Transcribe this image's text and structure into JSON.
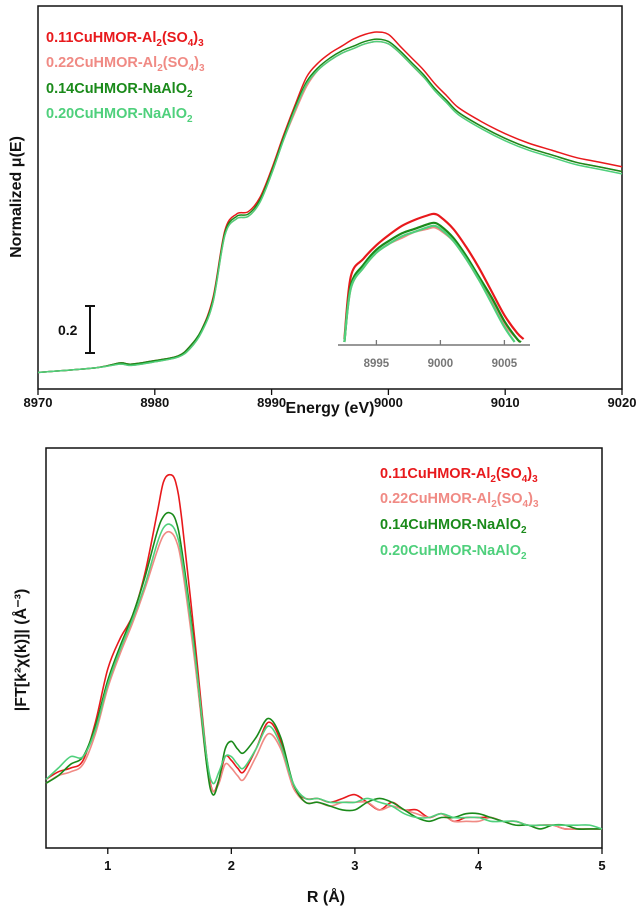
{
  "colors": {
    "s1": "#e8191c",
    "s2": "#f08a84",
    "s3": "#1a8a1a",
    "s4": "#4fd07c",
    "axis": "#111111",
    "inset_axis": "#777777"
  },
  "chart_data": [
    {
      "type": "line",
      "xlabel": "Energy (eV)",
      "ylabel": "Normalized μ(E)",
      "xlim": [
        8970,
        9020
      ],
      "ylim": [
        -0.07,
        1.55
      ],
      "xticks": [
        "8970",
        "8980",
        "8990",
        "9000",
        "9010",
        "9020"
      ],
      "scale_bar": {
        "label": "0.2",
        "value": 0.2
      },
      "legend_placement": "top-left",
      "series": [
        {
          "name": "0.11CuHMOR-Al2(SO4)3",
          "name_main": "0.11CuHMOR-Al",
          "name_sub1": "2",
          "name_mid": "(SO",
          "name_sub2": "4",
          "name_end": ")",
          "name_sub3": "3",
          "color_key": "s1",
          "x": [
            8970,
            8975,
            8977,
            8978,
            8980,
            8982,
            8983,
            8984,
            8985,
            8986,
            8987,
            8988,
            8989,
            8990,
            8991,
            8992,
            8993,
            8994,
            8995,
            8996,
            8997,
            8998,
            8999,
            9000,
            9001,
            9002,
            9003,
            9004,
            9005,
            9006,
            9008,
            9010,
            9012,
            9014,
            9016,
            9018,
            9020
          ],
          "y": [
            0.0,
            0.02,
            0.04,
            0.035,
            0.05,
            0.07,
            0.11,
            0.18,
            0.32,
            0.6,
            0.67,
            0.68,
            0.74,
            0.86,
            1.0,
            1.13,
            1.25,
            1.31,
            1.35,
            1.38,
            1.41,
            1.43,
            1.44,
            1.43,
            1.38,
            1.33,
            1.28,
            1.22,
            1.17,
            1.12,
            1.06,
            1.01,
            0.97,
            0.94,
            0.91,
            0.89,
            0.87
          ]
        },
        {
          "name": "0.22CuHMOR-Al2(SO4)3",
          "name_main": "0.22CuHMOR-Al",
          "name_sub1": "2",
          "name_mid": "(SO",
          "name_sub2": "4",
          "name_end": ")",
          "name_sub3": "3",
          "color_key": "s2",
          "x": [
            8970,
            8975,
            8977,
            8978,
            8980,
            8982,
            8983,
            8984,
            8985,
            8986,
            8987,
            8988,
            8989,
            8990,
            8991,
            8992,
            8993,
            8994,
            8995,
            8996,
            8997,
            8998,
            8999,
            9000,
            9001,
            9002,
            9003,
            9004,
            9005,
            9006,
            9008,
            9010,
            9012,
            9014,
            9016,
            9018,
            9020
          ],
          "y": [
            0.0,
            0.02,
            0.035,
            0.03,
            0.045,
            0.065,
            0.1,
            0.17,
            0.3,
            0.58,
            0.65,
            0.66,
            0.72,
            0.84,
            0.98,
            1.1,
            1.21,
            1.28,
            1.32,
            1.35,
            1.37,
            1.39,
            1.4,
            1.39,
            1.35,
            1.3,
            1.25,
            1.2,
            1.15,
            1.1,
            1.04,
            0.99,
            0.95,
            0.92,
            0.89,
            0.87,
            0.85
          ]
        },
        {
          "name": "0.14CuHMOR-NaAlO2",
          "name_main": "0.14CuHMOR-NaAlO",
          "name_sub1": "2",
          "color_key": "s3",
          "x": [
            8970,
            8975,
            8977,
            8978,
            8980,
            8982,
            8983,
            8984,
            8985,
            8986,
            8987,
            8988,
            8989,
            8990,
            8991,
            8992,
            8993,
            8994,
            8995,
            8996,
            8997,
            8998,
            8999,
            9000,
            9001,
            9002,
            9003,
            9004,
            9005,
            9006,
            9008,
            9010,
            9012,
            9014,
            9016,
            9018,
            9020
          ],
          "y": [
            0.0,
            0.02,
            0.04,
            0.035,
            0.05,
            0.07,
            0.11,
            0.18,
            0.31,
            0.59,
            0.66,
            0.67,
            0.73,
            0.85,
            0.99,
            1.12,
            1.23,
            1.29,
            1.33,
            1.36,
            1.38,
            1.4,
            1.41,
            1.4,
            1.36,
            1.31,
            1.26,
            1.2,
            1.15,
            1.1,
            1.04,
            0.99,
            0.95,
            0.92,
            0.89,
            0.87,
            0.85
          ]
        },
        {
          "name": "0.20CuHMOR-NaAlO2",
          "name_main": "0.20CuHMOR-NaAlO",
          "name_sub1": "2",
          "color_key": "s4",
          "x": [
            8970,
            8975,
            8977,
            8978,
            8980,
            8982,
            8983,
            8984,
            8985,
            8986,
            8987,
            8988,
            8989,
            8990,
            8991,
            8992,
            8993,
            8994,
            8995,
            8996,
            8997,
            8998,
            8999,
            9000,
            9001,
            9002,
            9003,
            9004,
            9005,
            9006,
            9008,
            9010,
            9012,
            9014,
            9016,
            9018,
            9020
          ],
          "y": [
            0.0,
            0.02,
            0.035,
            0.03,
            0.045,
            0.065,
            0.1,
            0.17,
            0.3,
            0.58,
            0.65,
            0.66,
            0.72,
            0.84,
            0.98,
            1.11,
            1.22,
            1.28,
            1.32,
            1.35,
            1.37,
            1.39,
            1.4,
            1.39,
            1.35,
            1.3,
            1.25,
            1.19,
            1.14,
            1.09,
            1.03,
            0.98,
            0.94,
            0.91,
            0.88,
            0.86,
            0.84
          ]
        }
      ],
      "inset": {
        "xlim": [
          8992,
          9007
        ],
        "ylim": [
          1.0,
          1.5
        ],
        "xticks": [
          "8995",
          "9000",
          "9005"
        ],
        "series": [
          {
            "color_key": "s1",
            "x": [
              8992.5,
              8993,
              8994,
              8995,
              8996,
              8997,
              8998,
              8999,
              8999.5,
              9000,
              9001,
              9002,
              9003,
              9004,
              9005,
              9006,
              9006.5
            ],
            "y": [
              1.02,
              1.23,
              1.29,
              1.335,
              1.37,
              1.4,
              1.42,
              1.435,
              1.44,
              1.43,
              1.39,
              1.33,
              1.26,
              1.18,
              1.1,
              1.04,
              1.02
            ]
          },
          {
            "color_key": "s2",
            "x": [
              8992.5,
              8993,
              8994,
              8995,
              8996,
              8997,
              8998,
              8999,
              8999.5,
              9000,
              9001,
              9002,
              9003,
              9004,
              9005,
              9006,
              9006.2
            ],
            "y": [
              1.01,
              1.19,
              1.26,
              1.31,
              1.34,
              1.36,
              1.38,
              1.39,
              1.395,
              1.385,
              1.35,
              1.29,
              1.22,
              1.15,
              1.07,
              1.02,
              1.01
            ]
          },
          {
            "color_key": "s3",
            "x": [
              8992.5,
              8993,
              8994,
              8995,
              8996,
              8997,
              8998,
              8999,
              8999.5,
              9000,
              9001,
              9002,
              9003,
              9004,
              9005,
              9006,
              9006.3
            ],
            "y": [
              1.01,
              1.2,
              1.27,
              1.32,
              1.35,
              1.375,
              1.39,
              1.405,
              1.41,
              1.4,
              1.36,
              1.3,
              1.23,
              1.16,
              1.08,
              1.02,
              1.01
            ]
          },
          {
            "color_key": "s4",
            "x": [
              8992.5,
              8993,
              8994,
              8995,
              8996,
              8997,
              8998,
              8999,
              8999.5,
              9000,
              9001,
              9002,
              9003,
              9004,
              9005,
              9005.8
            ],
            "y": [
              1.01,
              1.19,
              1.26,
              1.31,
              1.34,
              1.365,
              1.38,
              1.395,
              1.4,
              1.39,
              1.35,
              1.29,
              1.22,
              1.14,
              1.06,
              1.01
            ]
          }
        ]
      }
    },
    {
      "type": "line",
      "xlabel": "R (Å)",
      "ylabel": "|FT[k²χ(k)]| (Å⁻³)",
      "xlim": [
        0.5,
        5.0
      ],
      "ylim": [
        0,
        1.05
      ],
      "xticks": [
        "1",
        "2",
        "3",
        "4",
        "5"
      ],
      "xtick_values": [
        1,
        2,
        3,
        4,
        5
      ],
      "legend_placement": "top-right",
      "series": [
        {
          "name": "0.11CuHMOR-Al2(SO4)3",
          "name_main": "0.11CuHMOR-Al",
          "name_sub1": "2",
          "name_mid": "(SO",
          "name_sub2": "4",
          "name_end": ")",
          "name_sub3": "3",
          "color_key": "s1",
          "x": [
            0.5,
            0.6,
            0.7,
            0.8,
            0.9,
            1.0,
            1.1,
            1.2,
            1.3,
            1.4,
            1.45,
            1.5,
            1.55,
            1.6,
            1.7,
            1.8,
            1.85,
            1.9,
            1.95,
            2.0,
            2.05,
            2.1,
            2.2,
            2.3,
            2.4,
            2.5,
            2.6,
            2.7,
            2.8,
            2.9,
            3.0,
            3.1,
            3.2,
            3.3,
            3.4,
            3.5,
            3.6,
            3.7,
            3.8,
            3.9,
            4.0,
            4.1,
            4.2,
            4.3,
            4.4,
            4.5,
            4.6,
            4.7,
            4.8,
            4.9,
            5.0
          ],
          "y": [
            0.18,
            0.2,
            0.21,
            0.23,
            0.33,
            0.47,
            0.55,
            0.61,
            0.72,
            0.88,
            0.96,
            0.98,
            0.96,
            0.86,
            0.56,
            0.24,
            0.15,
            0.18,
            0.24,
            0.23,
            0.21,
            0.2,
            0.26,
            0.33,
            0.28,
            0.16,
            0.13,
            0.13,
            0.12,
            0.13,
            0.14,
            0.12,
            0.1,
            0.12,
            0.1,
            0.1,
            0.08,
            0.09,
            0.07,
            0.08,
            0.08,
            0.08,
            0.07,
            0.07,
            0.06,
            0.06,
            0.06,
            0.05,
            0.05,
            0.05,
            0.05
          ]
        },
        {
          "name": "0.22CuHMOR-Al2(SO4)3",
          "name_main": "0.22CuHMOR-Al",
          "name_sub1": "2",
          "name_mid": "(SO",
          "name_sub2": "4",
          "name_end": ")",
          "name_sub3": "3",
          "color_key": "s2",
          "x": [
            0.5,
            0.6,
            0.7,
            0.8,
            0.9,
            1.0,
            1.1,
            1.2,
            1.3,
            1.4,
            1.45,
            1.5,
            1.55,
            1.6,
            1.7,
            1.8,
            1.85,
            1.9,
            1.95,
            2.0,
            2.05,
            2.1,
            2.2,
            2.3,
            2.4,
            2.5,
            2.6,
            2.7,
            2.8,
            2.9,
            3.0,
            3.1,
            3.2,
            3.3,
            3.4,
            3.5,
            3.6,
            3.7,
            3.8,
            3.9,
            4.0,
            4.1,
            4.2,
            4.3,
            4.4,
            4.5,
            4.6,
            4.7,
            4.8,
            4.9,
            5.0
          ],
          "y": [
            0.17,
            0.19,
            0.2,
            0.22,
            0.3,
            0.42,
            0.51,
            0.59,
            0.68,
            0.78,
            0.82,
            0.83,
            0.81,
            0.74,
            0.5,
            0.22,
            0.15,
            0.17,
            0.22,
            0.21,
            0.19,
            0.18,
            0.24,
            0.3,
            0.26,
            0.16,
            0.12,
            0.12,
            0.11,
            0.12,
            0.12,
            0.12,
            0.1,
            0.11,
            0.1,
            0.09,
            0.08,
            0.09,
            0.07,
            0.07,
            0.07,
            0.08,
            0.07,
            0.07,
            0.06,
            0.06,
            0.06,
            0.05,
            0.05,
            0.05,
            0.05
          ]
        },
        {
          "name": "0.14CuHMOR-NaAlO2",
          "name_main": "0.14CuHMOR-NaAlO",
          "name_sub1": "2",
          "color_key": "s3",
          "x": [
            0.5,
            0.6,
            0.7,
            0.8,
            0.9,
            1.0,
            1.1,
            1.2,
            1.3,
            1.4,
            1.45,
            1.5,
            1.55,
            1.6,
            1.7,
            1.8,
            1.85,
            1.9,
            1.95,
            2.0,
            2.05,
            2.1,
            2.2,
            2.3,
            2.4,
            2.5,
            2.6,
            2.7,
            2.8,
            2.9,
            3.0,
            3.1,
            3.2,
            3.3,
            3.4,
            3.5,
            3.6,
            3.7,
            3.8,
            3.9,
            4.0,
            4.1,
            4.2,
            4.3,
            4.4,
            4.5,
            4.6,
            4.7,
            4.8,
            4.9,
            5.0
          ],
          "y": [
            0.17,
            0.19,
            0.22,
            0.24,
            0.32,
            0.44,
            0.53,
            0.61,
            0.71,
            0.83,
            0.87,
            0.88,
            0.86,
            0.78,
            0.53,
            0.22,
            0.14,
            0.18,
            0.26,
            0.28,
            0.26,
            0.25,
            0.29,
            0.34,
            0.29,
            0.17,
            0.12,
            0.12,
            0.11,
            0.1,
            0.1,
            0.12,
            0.13,
            0.12,
            0.1,
            0.08,
            0.07,
            0.08,
            0.08,
            0.09,
            0.09,
            0.08,
            0.07,
            0.06,
            0.06,
            0.05,
            0.06,
            0.06,
            0.05,
            0.05,
            0.05
          ]
        },
        {
          "name": "0.20CuHMOR-NaAlO2",
          "name_main": "0.20CuHMOR-NaAlO",
          "name_sub1": "2",
          "color_key": "s4",
          "x": [
            0.5,
            0.6,
            0.7,
            0.8,
            0.9,
            1.0,
            1.1,
            1.2,
            1.3,
            1.4,
            1.45,
            1.5,
            1.55,
            1.6,
            1.7,
            1.8,
            1.85,
            1.9,
            1.95,
            2.0,
            2.05,
            2.1,
            2.2,
            2.3,
            2.4,
            2.5,
            2.6,
            2.7,
            2.8,
            2.9,
            3.0,
            3.1,
            3.2,
            3.3,
            3.4,
            3.5,
            3.6,
            3.7,
            3.8,
            3.9,
            4.0,
            4.1,
            4.2,
            4.3,
            4.4,
            4.5,
            4.6,
            4.7,
            4.8,
            4.9,
            5.0
          ],
          "y": [
            0.18,
            0.21,
            0.24,
            0.24,
            0.31,
            0.43,
            0.52,
            0.6,
            0.69,
            0.8,
            0.84,
            0.85,
            0.83,
            0.76,
            0.52,
            0.24,
            0.17,
            0.2,
            0.24,
            0.24,
            0.22,
            0.21,
            0.26,
            0.32,
            0.27,
            0.17,
            0.13,
            0.13,
            0.12,
            0.12,
            0.12,
            0.13,
            0.12,
            0.11,
            0.09,
            0.08,
            0.08,
            0.09,
            0.08,
            0.08,
            0.08,
            0.07,
            0.07,
            0.07,
            0.06,
            0.06,
            0.06,
            0.06,
            0.06,
            0.06,
            0.05
          ]
        }
      ]
    }
  ]
}
